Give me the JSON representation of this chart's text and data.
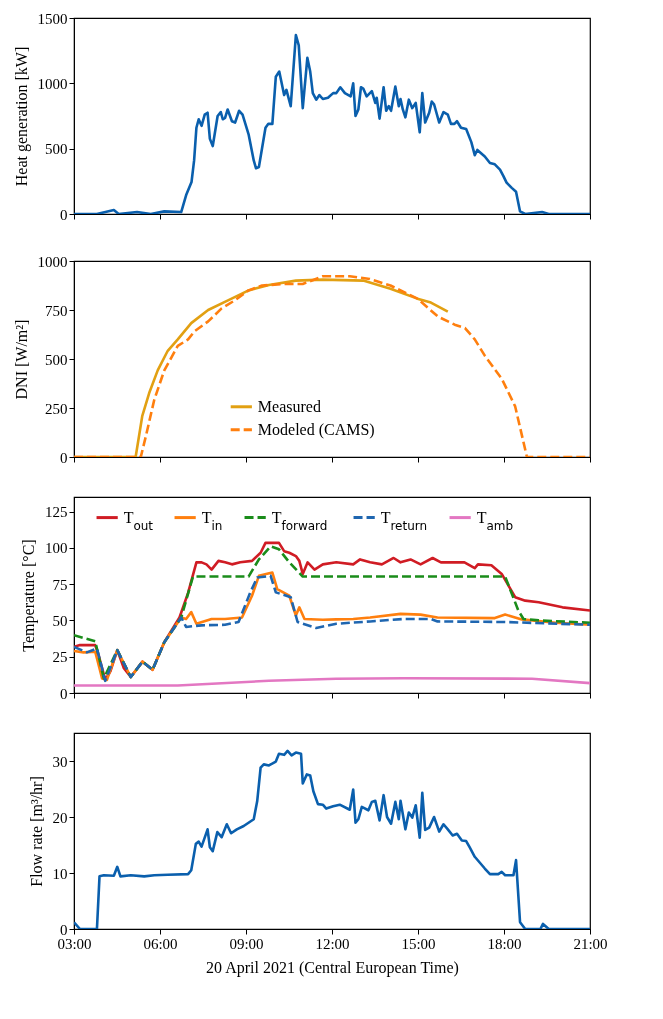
{
  "chart_data": [
    {
      "type": "line",
      "ylabel": "Heat generation [kW]",
      "xlim": [
        3,
        21
      ],
      "ylim": [
        0,
        1500
      ],
      "yticks": [
        0,
        500,
        1000,
        1500
      ],
      "tick_labels": "y",
      "xticks": [
        {
          "value": 3,
          "label": null
        },
        {
          "value": 6,
          "label": null
        },
        {
          "value": 9,
          "label": null
        },
        {
          "value": 12,
          "label": null
        },
        {
          "value": 15,
          "label": null
        },
        {
          "value": 18,
          "label": null
        },
        {
          "value": 21,
          "label": null
        }
      ],
      "series": [
        {
          "color": "#0a5fad",
          "line_style": "solid",
          "x": [
            3.0,
            3.8,
            4.39,
            4.56,
            5.2,
            5.68,
            6.15,
            6.74,
            6.92,
            7.1,
            7.19,
            7.27,
            7.35,
            7.45,
            7.56,
            7.66,
            7.74,
            7.84,
            8.01,
            8.12,
            8.19,
            8.27,
            8.36,
            8.51,
            8.62,
            8.76,
            8.88,
            9.09,
            9.27,
            9.35,
            9.45,
            9.68,
            9.78,
            9.92,
            10.04,
            10.16,
            10.33,
            10.41,
            10.56,
            10.74,
            10.84,
            10.98,
            11.14,
            11.24,
            11.33,
            11.45,
            11.56,
            11.68,
            11.86,
            12.04,
            12.15,
            12.29,
            12.45,
            12.65,
            12.74,
            12.82,
            12.92,
            13.01,
            13.09,
            13.21,
            13.39,
            13.51,
            13.56,
            13.66,
            13.8,
            13.89,
            13.98,
            14.06,
            14.21,
            14.33,
            14.39,
            14.47,
            14.56,
            14.68,
            14.8,
            14.92,
            15.06,
            15.15,
            15.25,
            15.39,
            15.48,
            15.56,
            15.74,
            15.89,
            16.04,
            16.15,
            16.27,
            16.36,
            16.5,
            16.68,
            16.86,
            16.98,
            17.07,
            17.33,
            17.51,
            17.68,
            17.86,
            17.98,
            18.09,
            18.27,
            18.42,
            18.56,
            18.74,
            19.33,
            19.56,
            21
          ],
          "values": [
            0,
            0,
            30,
            0,
            15,
            0,
            20,
            15,
            150,
            245,
            410,
            660,
            725,
            675,
            760,
            775,
            575,
            520,
            750,
            780,
            725,
            735,
            800,
            710,
            700,
            790,
            760,
            610,
            410,
            350,
            360,
            660,
            690,
            690,
            1050,
            1090,
            910,
            950,
            825,
            1370,
            1290,
            810,
            1195,
            1090,
            925,
            875,
            910,
            880,
            890,
            925,
            925,
            970,
            925,
            900,
            1000,
            750,
            800,
            970,
            960,
            900,
            940,
            850,
            890,
            730,
            970,
            790,
            825,
            790,
            975,
            825,
            880,
            800,
            740,
            875,
            810,
            850,
            625,
            925,
            700,
            775,
            860,
            840,
            700,
            780,
            760,
            690,
            690,
            710,
            660,
            650,
            550,
            450,
            490,
            440,
            390,
            380,
            340,
            290,
            240,
            200,
            170,
            20,
            0,
            15,
            0,
            0
          ]
        }
      ]
    },
    {
      "type": "line",
      "ylabel": "DNI [W/m²]",
      "xlim": [
        3,
        21
      ],
      "ylim": [
        0,
        1000
      ],
      "yticks": [
        0,
        250,
        500,
        750,
        1000
      ],
      "tick_labels": "y",
      "legend": "bottom",
      "xticks": [
        {
          "value": 3,
          "label": null
        },
        {
          "value": 6,
          "label": null
        },
        {
          "value": 9,
          "label": null
        },
        {
          "value": 12,
          "label": null
        },
        {
          "value": 15,
          "label": null
        },
        {
          "value": 18,
          "label": null
        },
        {
          "value": 21,
          "label": null
        }
      ],
      "series": [
        {
          "name": "Measured",
          "color": "#e2a012",
          "line_style": "solid",
          "x": [
            3.0,
            5.15,
            5.27,
            5.38,
            5.62,
            5.92,
            6.27,
            6.62,
            7.09,
            7.68,
            8.39,
            9.09,
            9.8,
            10.74,
            11.68,
            13.09,
            14.04,
            14.98,
            15.45,
            16.04
          ],
          "values": [
            0,
            0,
            108,
            208,
            325,
            442,
            542,
            600,
            683,
            750,
            800,
            850,
            878,
            900,
            905,
            900,
            858,
            808,
            788,
            742
          ]
        },
        {
          "name": "Modeled (CAMS)",
          "color": "#ff7f0e",
          "line_style": "dashed",
          "x": [
            3.0,
            5.33,
            5.51,
            5.8,
            6.15,
            6.62,
            6.98,
            7.21,
            7.68,
            8.15,
            8.62,
            9.09,
            9.56,
            10.39,
            10.98,
            11.68,
            12.62,
            13.32,
            14.04,
            14.98,
            15.69,
            16.28,
            16.64,
            16.98,
            17.33,
            17.92,
            18.39,
            18.8,
            21
          ],
          "values": [
            0,
            0,
            108,
            292,
            442,
            567,
            600,
            642,
            692,
            758,
            800,
            850,
            875,
            883,
            883,
            922,
            922,
            908,
            875,
            808,
            717,
            675,
            658,
            600,
            517,
            400,
            258,
            0,
            0
          ]
        }
      ]
    },
    {
      "type": "line",
      "ylabel": "Temperature [°C]",
      "xlim": [
        3,
        21
      ],
      "ylim": [
        0,
        135
      ],
      "yticks": [
        0,
        25,
        50,
        75,
        100,
        125
      ],
      "tick_labels": "y",
      "legend": "top",
      "xticks": [
        {
          "value": 3,
          "label": null
        },
        {
          "value": 6,
          "label": null
        },
        {
          "value": 9,
          "label": null
        },
        {
          "value": 12,
          "label": null
        },
        {
          "value": 15,
          "label": null
        },
        {
          "value": 18,
          "label": null
        },
        {
          "value": 21,
          "label": null
        }
      ],
      "series": [
        {
          "name": "T$_{out}$",
          "color": "#d01c24",
          "line_style": "solid",
          "x": [
            3,
            3.21,
            3.74,
            3.86,
            4.09,
            4.27,
            4.51,
            4.74,
            4.98,
            5.39,
            5.74,
            6.15,
            6.68,
            6.98,
            7.27,
            7.45,
            7.62,
            7.8,
            8.04,
            8.27,
            8.51,
            8.8,
            9.21,
            9.51,
            9.68,
            10.15,
            10.33,
            10.51,
            10.74,
            10.86,
            10.98,
            11.15,
            11.39,
            11.68,
            12.15,
            12.74,
            12.98,
            13.33,
            13.74,
            14.15,
            14.39,
            14.74,
            15.09,
            15.51,
            15.8,
            16.62,
            16.98,
            17.09,
            17.56,
            17.92,
            18.39,
            18.74,
            19.21,
            20.04,
            21
          ],
          "values": [
            31.8,
            33,
            33,
            26,
            9,
            15,
            29.5,
            17,
            11,
            21.6,
            16,
            35,
            52,
            69,
            90,
            90,
            88.6,
            85,
            91,
            90,
            88.6,
            90,
            91,
            96.6,
            103.4,
            103.4,
            97.7,
            96.6,
            94.3,
            91,
            82,
            90,
            85,
            88.6,
            90,
            88.6,
            92,
            90,
            88.6,
            93,
            90,
            92,
            88.6,
            93,
            90,
            90,
            86,
            88.6,
            88,
            82,
            66,
            63.6,
            62.5,
            59,
            56.8
          ]
        },
        {
          "name": "T$_{in}$",
          "color": "#ff7f0e",
          "line_style": "solid",
          "x": [
            3,
            3.33,
            3.74,
            3.98,
            4.15,
            4.51,
            4.98,
            5.39,
            5.74,
            6.15,
            6.74,
            6.91,
            7.09,
            7.27,
            7.8,
            8.27,
            8.86,
            9.21,
            9.45,
            9.92,
            10.09,
            10.51,
            10.74,
            10.86,
            11.04,
            11.68,
            12.15,
            12.74,
            13.33,
            14.39,
            15.09,
            15.68,
            17.68,
            18.04,
            18.62,
            19.8,
            21
          ],
          "values": [
            28.9,
            28,
            28.4,
            10,
            9,
            29.5,
            11,
            21.6,
            16,
            35,
            52,
            51,
            55.7,
            47.7,
            51,
            51,
            52,
            67,
            80.7,
            83,
            71.6,
            67,
            53.4,
            59,
            51,
            50.5,
            50.7,
            51,
            52,
            54.5,
            54,
            52,
            51.6,
            54,
            50.7,
            48.4,
            47
          ]
        },
        {
          "name": "T$_{forward}$",
          "color": "#1a8c1a",
          "line_style": "dashed",
          "x": [
            3,
            3.74,
            4.04,
            4.51,
            4.98,
            5.39,
            5.74,
            6.15,
            6.74,
            7.15,
            9.09,
            9.45,
            9.86,
            10.15,
            10.51,
            10.98,
            18.04,
            18.5,
            18.68,
            19.21,
            21
          ],
          "values": [
            39.8,
            35.7,
            10,
            29.5,
            11,
            21.6,
            16,
            35,
            52,
            80.2,
            80.2,
            92,
            101,
            99,
            90,
            80.2,
            80.2,
            56.8,
            51,
            50,
            48.4
          ]
        },
        {
          "name": "T$_{return}$",
          "color": "#1f66b0",
          "line_style": "dashed",
          "x": [
            3,
            3.45,
            3.8,
            4.09,
            4.51,
            4.98,
            5.39,
            5.74,
            6.15,
            6.74,
            6.91,
            7.45,
            8.27,
            8.74,
            9.15,
            9.39,
            9.86,
            10.04,
            10.56,
            10.8,
            10.98,
            11.45,
            12.15,
            13.33,
            14.51,
            15.45,
            15.68,
            18.04,
            21
          ],
          "values": [
            31.8,
            28,
            30.7,
            8.4,
            29.5,
            11,
            21.6,
            16,
            35,
            52,
            45.5,
            46.6,
            47,
            48.9,
            69.3,
            79.5,
            80.7,
            69.3,
            66,
            48.9,
            47.7,
            44.8,
            47.7,
            49.3,
            51,
            51,
            49.3,
            48.9,
            47
          ]
        },
        {
          "name": "T$_{amb}$",
          "color": "#e377c2",
          "line_style": "solid",
          "x": [
            3,
            6.62,
            9.8,
            12.15,
            14.51,
            18.98,
            21
          ],
          "values": [
            5.2,
            5.2,
            8.4,
            9.8,
            10.2,
            9.8,
            6.8
          ]
        }
      ]
    },
    {
      "type": "line",
      "ylabel": "Flow rate [m³/hr]",
      "xlabel": "20 April 2021 (Central European Time)",
      "xlim": [
        3,
        21
      ],
      "ylim": [
        0,
        35
      ],
      "yticks": [
        0,
        10,
        20,
        30
      ],
      "xticks": [
        {
          "value": 3,
          "label": "03:00"
        },
        {
          "value": 6,
          "label": "06:00"
        },
        {
          "value": 9,
          "label": "09:00"
        },
        {
          "value": 12,
          "label": "12:00"
        },
        {
          "value": 15,
          "label": "15:00"
        },
        {
          "value": 18,
          "label": "18:00"
        },
        {
          "value": 21,
          "label": "21:00"
        }
      ],
      "series": [
        {
          "color": "#0a5fad",
          "line_style": "solid",
          "x": [
            3,
            3.21,
            3.8,
            3.89,
            4.04,
            4.39,
            4.51,
            4.62,
            4.98,
            5.45,
            5.8,
            6.27,
            6.98,
            7.09,
            7.25,
            7.35,
            7.45,
            7.66,
            7.74,
            7.84,
            8.0,
            8.15,
            8.33,
            8.48,
            8.68,
            8.92,
            9.27,
            9.39,
            9.51,
            9.62,
            9.8,
            10.04,
            10.15,
            10.33,
            10.45,
            10.59,
            10.74,
            10.92,
            10.98,
            11.12,
            11.24,
            11.35,
            11.51,
            11.68,
            11.8,
            12.04,
            12.27,
            12.62,
            12.74,
            12.82,
            12.92,
            13.04,
            13.27,
            13.39,
            13.51,
            13.66,
            13.8,
            13.92,
            14.06,
            14.21,
            14.33,
            14.39,
            14.56,
            14.68,
            14.8,
            14.92,
            15.06,
            15.15,
            15.25,
            15.39,
            15.56,
            15.74,
            15.89,
            16.04,
            16.21,
            16.36,
            16.53,
            16.68,
            16.8,
            16.98,
            17.33,
            17.51,
            17.8,
            17.92,
            18.04,
            18.33,
            18.42,
            18.56,
            18.74,
            19.27,
            19.36,
            19.56,
            21
          ],
          "values": [
            1.2,
            0,
            0,
            9.4,
            9.6,
            9.5,
            11.1,
            9.4,
            9.6,
            9.4,
            9.6,
            9.7,
            9.8,
            10.5,
            15.2,
            15.6,
            14.7,
            17.8,
            14.6,
            13.9,
            17.3,
            16.4,
            18.7,
            17.1,
            17.8,
            18.4,
            19.6,
            22.8,
            28.8,
            29.4,
            29.2,
            29.9,
            31.3,
            31.1,
            31.8,
            31,
            31.5,
            31.3,
            26,
            27.6,
            27.4,
            24.6,
            22.3,
            22.2,
            21.5,
            21.9,
            22.2,
            21.3,
            24.9,
            19,
            19.6,
            21.8,
            21.2,
            22.7,
            22.9,
            19.4,
            23.9,
            20,
            18.8,
            22.7,
            19.6,
            22.9,
            17.8,
            20.8,
            19.9,
            22.1,
            16.3,
            24.3,
            17.7,
            18.1,
            20,
            17.4,
            18.7,
            17.8,
            16.7,
            17,
            15.8,
            15.7,
            14.6,
            12.9,
            10.8,
            9.8,
            9.8,
            10.2,
            9.6,
            9.6,
            12.3,
            1.2,
            0,
            0,
            0.9,
            0,
            0
          ]
        }
      ]
    }
  ]
}
